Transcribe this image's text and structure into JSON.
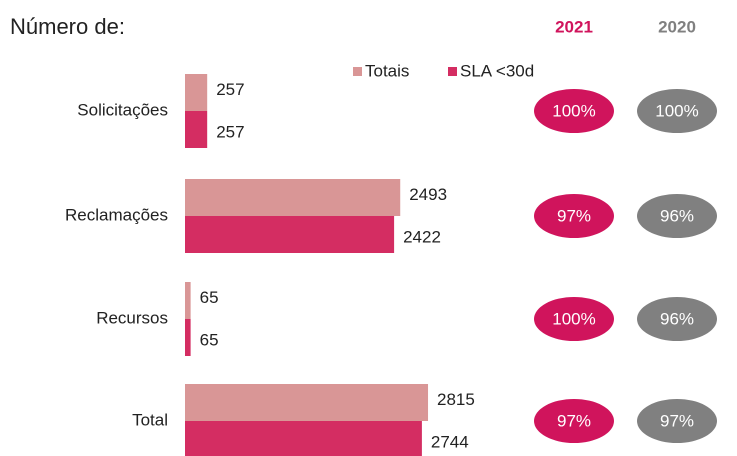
{
  "chart_data": {
    "type": "bar",
    "orientation": "horizontal",
    "title": "Número de:",
    "categories": [
      "Solicitações",
      "Reclamações",
      "Recursos",
      "Total"
    ],
    "series": [
      {
        "name": "Totais",
        "color": "#d99696",
        "values": [
          257,
          2493,
          65,
          2815
        ]
      },
      {
        "name": "SLA <30d",
        "color": "#d42d62",
        "values": [
          257,
          2422,
          65,
          2744
        ]
      }
    ],
    "xlim": [
      0,
      3000
    ],
    "columns": [
      {
        "name": "2021",
        "color": "#d0145c",
        "values": [
          100,
          97,
          100,
          97
        ],
        "value_labels": [
          "100%",
          "97%",
          "100%",
          "97%"
        ]
      },
      {
        "name": "2020",
        "color": "#808080",
        "values": [
          100,
          96,
          96,
          97
        ],
        "value_labels": [
          "100%",
          "96%",
          "96%",
          "97%"
        ]
      }
    ]
  }
}
